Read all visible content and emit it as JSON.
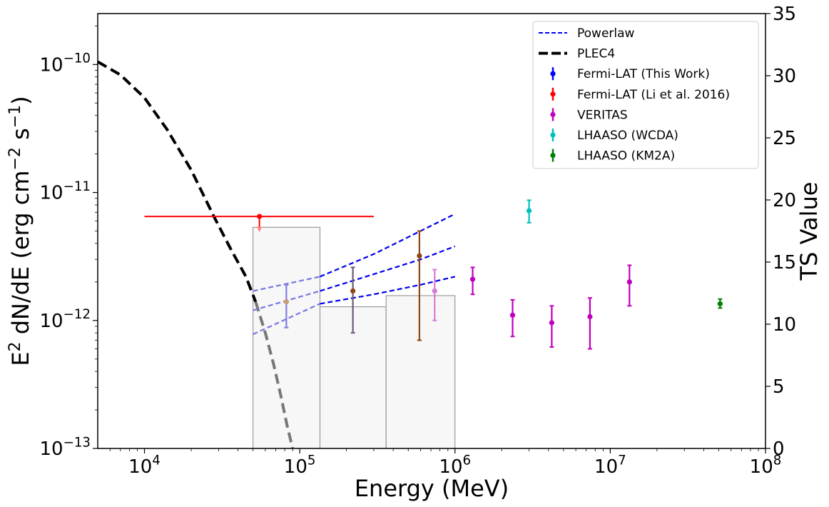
{
  "chart_data": {
    "type": "scatter",
    "xlabel": "Energy (MeV)",
    "ylabel_left": "E^2 dN/dE (erg cm^-2 s^-1)",
    "ylabel_right": "TS Value",
    "xscale": "log",
    "yscale_left": "log",
    "xlim": [
      5000,
      100000000
    ],
    "ylim_left": [
      1e-13,
      2.5e-10
    ],
    "ylim_right": [
      0,
      35
    ],
    "x_ticks": [
      {
        "value": 10000,
        "base": "10",
        "exp": "4"
      },
      {
        "value": 100000,
        "base": "10",
        "exp": "5"
      },
      {
        "value": 1000000,
        "base": "10",
        "exp": "6"
      },
      {
        "value": 10000000,
        "base": "10",
        "exp": "7"
      },
      {
        "value": 100000000,
        "base": "10",
        "exp": "8"
      }
    ],
    "y_left_ticks": [
      {
        "value": 1e-13,
        "base": "10",
        "exp": "−13"
      },
      {
        "value": 1e-12,
        "base": "10",
        "exp": "−12"
      },
      {
        "value": 1e-11,
        "base": "10",
        "exp": "−11"
      },
      {
        "value": 1e-10,
        "base": "10",
        "exp": "−10"
      }
    ],
    "y_right_ticks": [
      "0",
      "5",
      "10",
      "15",
      "20",
      "25",
      "30",
      "35"
    ],
    "ts_bars": [
      {
        "x0": 50000,
        "x1": 135000,
        "ts": 17.8
      },
      {
        "x0": 135000,
        "x1": 360000,
        "ts": 11.4
      },
      {
        "x0": 360000,
        "x1": 1000000,
        "ts": 12.3
      }
    ],
    "plec4_curve": {
      "name": "PLEC4",
      "color": "#000000",
      "points": [
        [
          5000,
          1.05e-10
        ],
        [
          7000,
          8.3e-11
        ],
        [
          10000,
          5.5e-11
        ],
        [
          14000,
          3.1e-11
        ],
        [
          20000,
          1.5e-11
        ],
        [
          28000,
          6.5e-12
        ],
        [
          36000,
          3.6e-12
        ],
        [
          45000,
          2.2e-12
        ],
        [
          52000,
          1.4e-12
        ],
        [
          60000,
          8e-13
        ],
        [
          68000,
          4.5e-13
        ],
        [
          76000,
          2.5e-13
        ],
        [
          83000,
          1.5e-13
        ],
        [
          90000,
          1e-13
        ]
      ],
      "faded_after": 50000
    },
    "powerlaw_band": {
      "name": "Powerlaw",
      "color": "#0000ee",
      "faded_before": 135000,
      "upper": [
        [
          50000,
          1.7e-12
        ],
        [
          135000,
          2.2e-12
        ],
        [
          300000,
          3.3e-12
        ],
        [
          600000,
          5e-12
        ],
        [
          1000000,
          6.8e-12
        ]
      ],
      "middle": [
        [
          50000,
          1.2e-12
        ],
        [
          135000,
          1.7e-12
        ],
        [
          300000,
          2.3e-12
        ],
        [
          600000,
          3e-12
        ],
        [
          1000000,
          3.8e-12
        ]
      ],
      "lower": [
        [
          50000,
          7.8e-13
        ],
        [
          135000,
          1.35e-12
        ],
        [
          300000,
          1.6e-12
        ],
        [
          600000,
          1.9e-12
        ],
        [
          1000000,
          2.2e-12
        ]
      ]
    },
    "series": [
      {
        "name": "Fermi-LAT (This Work)",
        "color": "#0000ff",
        "points": [
          {
            "x": 82000,
            "y": 1.4e-12,
            "ylo": 8.8e-13,
            "yhi": 1.9e-12,
            "shade": "#7f7fe6",
            "marker": "#c49a7a"
          },
          {
            "x": 220000,
            "y": 1.7e-12,
            "ylo": 8e-13,
            "yhi": 2.6e-12,
            "shade": "#6e5a78",
            "marker": "#8b4513"
          },
          {
            "x": 590000,
            "y": 3.2e-12,
            "ylo": 7e-13,
            "yhi": 5e-12,
            "shade": "#8b4513",
            "marker": "#8b4513"
          }
        ]
      },
      {
        "name": "Fermi-LAT (Li et al. 2016)",
        "color": "#ff0000",
        "points": [
          {
            "x": 55000,
            "y": 6.5e-12,
            "xlo": 10000,
            "xhi": 300000,
            "ylo": 5e-12,
            "upper_limit": true
          }
        ]
      },
      {
        "name": "VERITAS",
        "color": "#bf00bf",
        "points": [
          {
            "x": 740000,
            "y": 1.7e-12,
            "ylo": 1e-12,
            "yhi": 2.5e-12,
            "shade": "#d67ad6"
          },
          {
            "x": 1300000,
            "y": 2.1e-12,
            "ylo": 1.6e-12,
            "yhi": 2.6e-12
          },
          {
            "x": 2350000,
            "y": 1.1e-12,
            "ylo": 7.5e-13,
            "yhi": 1.45e-12
          },
          {
            "x": 4200000,
            "y": 9.6e-13,
            "ylo": 6.2e-13,
            "yhi": 1.3e-12
          },
          {
            "x": 7400000,
            "y": 1.07e-12,
            "ylo": 6e-13,
            "yhi": 1.5e-12
          },
          {
            "x": 13300000,
            "y": 2e-12,
            "ylo": 1.3e-12,
            "yhi": 2.7e-12
          }
        ]
      },
      {
        "name": "LHAASO (WCDA)",
        "color": "#00bfbf",
        "points": [
          {
            "x": 3000000,
            "y": 7.2e-12,
            "ylo": 5.8e-12,
            "yhi": 8.7e-12
          }
        ]
      },
      {
        "name": "LHAASO (KM2A)",
        "color": "#008000",
        "points": [
          {
            "x": 51000000,
            "y": 1.35e-12,
            "ylo": 1.25e-12,
            "yhi": 1.47e-12
          }
        ]
      }
    ],
    "legend": {
      "placement": "top-right",
      "entries": [
        {
          "label": "Powerlaw",
          "color": "#0000ee",
          "style": "dashed"
        },
        {
          "label": "PLEC4",
          "color": "#000000",
          "style": "dashed-thick"
        },
        {
          "label": "Fermi-LAT (This Work)",
          "color": "#0000ff",
          "style": "errorbar"
        },
        {
          "label": "Fermi-LAT (Li et al. 2016)",
          "color": "#ff0000",
          "style": "errorbar"
        },
        {
          "label": "VERITAS",
          "color": "#bf00bf",
          "style": "errorbar"
        },
        {
          "label": "LHAASO (WCDA)",
          "color": "#00bfbf",
          "style": "errorbar"
        },
        {
          "label": "LHAASO (KM2A)",
          "color": "#008000",
          "style": "errorbar"
        }
      ]
    }
  }
}
